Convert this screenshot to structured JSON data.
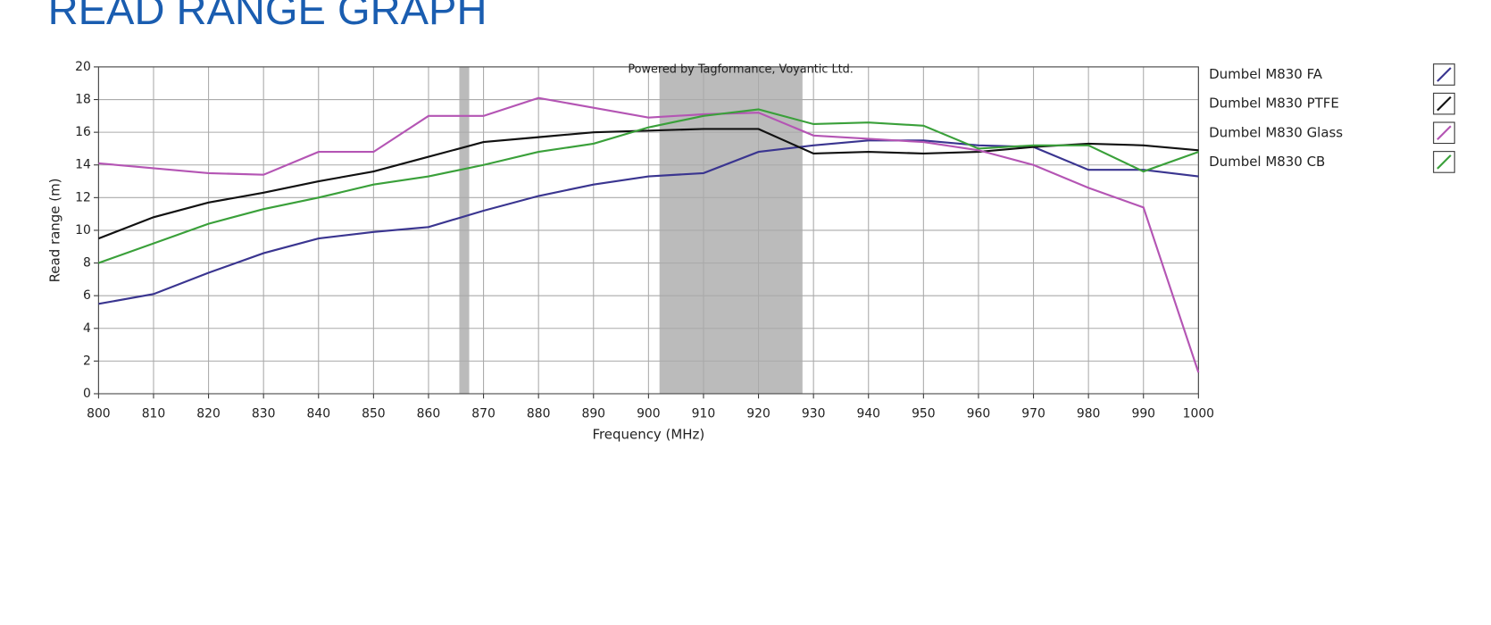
{
  "chart_data": {
    "type": "line",
    "title": "READ RANGE GRAPH",
    "annotation": "Powered by Tagformance, Voyantic Ltd.",
    "x_label": "Frequency (MHz)",
    "y_label": "Read range (m)",
    "x": [
      800,
      810,
      820,
      830,
      840,
      850,
      860,
      870,
      880,
      890,
      900,
      910,
      920,
      930,
      940,
      950,
      960,
      970,
      980,
      990,
      1000
    ],
    "series": [
      {
        "name": "Dumbel M830 FA",
        "color": "#3a3590",
        "values": [
          5.5,
          6.1,
          7.4,
          8.6,
          9.5,
          9.9,
          10.2,
          11.2,
          12.1,
          12.8,
          13.3,
          13.5,
          14.8,
          15.2,
          15.5,
          15.5,
          15.2,
          15.1,
          13.7,
          13.7,
          13.3
        ]
      },
      {
        "name": "Dumbel M830 PTFE",
        "color": "#111111",
        "values": [
          9.5,
          10.8,
          11.7,
          12.3,
          13.0,
          13.6,
          14.5,
          15.4,
          15.7,
          16.0,
          16.1,
          16.2,
          16.2,
          14.7,
          14.8,
          14.7,
          14.8,
          15.1,
          15.3,
          15.2,
          14.9
        ]
      },
      {
        "name": "Dumbel M830 Glass",
        "color": "#b455b4",
        "values": [
          14.1,
          13.8,
          13.5,
          13.4,
          14.8,
          14.8,
          17.0,
          17.0,
          18.1,
          17.5,
          16.9,
          17.1,
          17.2,
          15.8,
          15.6,
          15.4,
          14.9,
          14.0,
          12.6,
          11.4,
          1.3
        ]
      },
      {
        "name": "Dumbel M830 CB",
        "color": "#3aa03a",
        "values": [
          8.0,
          9.2,
          10.4,
          11.3,
          12.0,
          12.8,
          13.3,
          14.0,
          14.8,
          15.3,
          16.3,
          17.0,
          17.4,
          16.5,
          16.6,
          16.4,
          15.0,
          15.2,
          15.2,
          13.6,
          14.8
        ]
      }
    ],
    "bands": [
      [
        865.6,
        867.4
      ],
      [
        902,
        928
      ]
    ],
    "band_color": "#bbbbbb",
    "xlim": [
      800,
      1000
    ],
    "xticks": [
      800,
      810,
      820,
      830,
      840,
      850,
      860,
      870,
      880,
      890,
      900,
      910,
      920,
      930,
      940,
      950,
      960,
      970,
      980,
      990,
      1000
    ],
    "ylim": [
      0,
      20
    ],
    "yticks": [
      0,
      2,
      4,
      6,
      8,
      10,
      12,
      14,
      16,
      18,
      20
    ],
    "grid": true,
    "legend": "right"
  }
}
